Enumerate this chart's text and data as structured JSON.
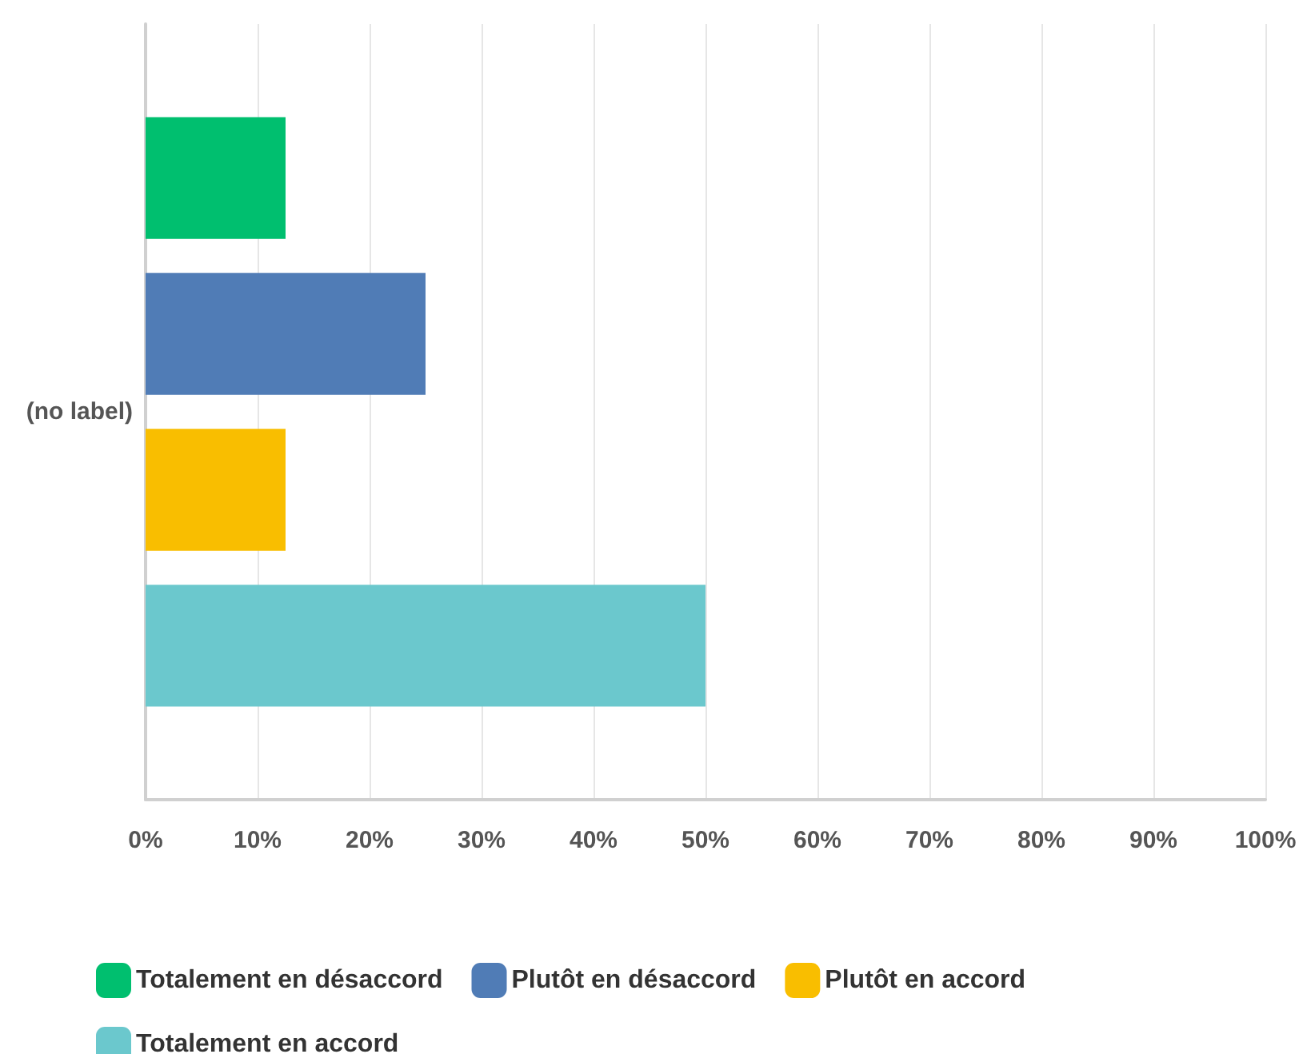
{
  "chart_data": {
    "type": "bar",
    "orientation": "horizontal",
    "categories": [
      "(no label)"
    ],
    "series": [
      {
        "name": "Totalement en désaccord",
        "color": "#00bf6f",
        "values": [
          12.5
        ]
      },
      {
        "name": "Plutôt en désaccord",
        "color": "#507cb6",
        "values": [
          25
        ]
      },
      {
        "name": "Plutôt en accord",
        "color": "#f9be00",
        "values": [
          12.5
        ]
      },
      {
        "name": "Totalement en accord",
        "color": "#6bc8cd",
        "values": [
          50
        ]
      }
    ],
    "xlim": [
      0,
      100
    ],
    "xticks": [
      {
        "value": 0,
        "label": "0%"
      },
      {
        "value": 10,
        "label": "10%"
      },
      {
        "value": 20,
        "label": "20%"
      },
      {
        "value": 30,
        "label": "30%"
      },
      {
        "value": 40,
        "label": "40%"
      },
      {
        "value": 50,
        "label": "50%"
      },
      {
        "value": 60,
        "label": "60%"
      },
      {
        "value": 70,
        "label": "70%"
      },
      {
        "value": 80,
        "label": "80%"
      },
      {
        "value": 90,
        "label": "90%"
      },
      {
        "value": 100,
        "label": "100%"
      }
    ],
    "grid": "x",
    "legend": "bottom left"
  }
}
